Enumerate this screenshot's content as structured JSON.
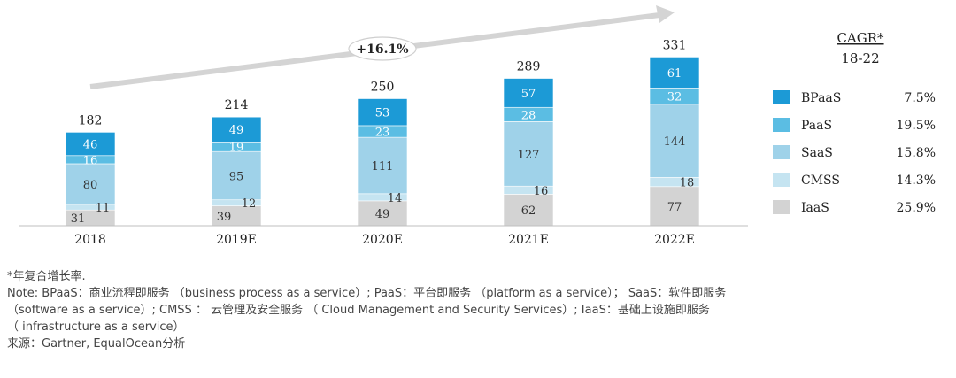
{
  "chart_data": {
    "type": "bar",
    "stacked": true,
    "categories": [
      "2018",
      "2019E",
      "2020E",
      "2021E",
      "2022E"
    ],
    "series": [
      {
        "name": "IaaS",
        "values": [
          31,
          39,
          49,
          62,
          77
        ]
      },
      {
        "name": "CMSS",
        "values": [
          11,
          12,
          14,
          16,
          18
        ]
      },
      {
        "name": "SaaS",
        "values": [
          80,
          95,
          111,
          127,
          144
        ]
      },
      {
        "name": "PaaS",
        "values": [
          16,
          19,
          23,
          28,
          32
        ]
      },
      {
        "name": "BPaaS",
        "values": [
          46,
          49,
          53,
          57,
          61
        ]
      }
    ],
    "totals": [
      182,
      214,
      250,
      289,
      331
    ],
    "growth_label": "+16.1%",
    "cagr_title": "CAGR*",
    "cagr_period": "18-22",
    "legend": [
      {
        "name": "BPaaS",
        "cagr": "7.5%"
      },
      {
        "name": "PaaS",
        "cagr": "19.5%"
      },
      {
        "name": "SaaS",
        "cagr": "15.8%"
      },
      {
        "name": "CMSS",
        "cagr": "14.3%"
      },
      {
        "name": "IaaS",
        "cagr": "25.9%"
      }
    ],
    "legend_position": "right",
    "ylim": [
      0,
      331
    ],
    "colors": {
      "IaaS": "#d3d3d3",
      "CMSS": "#c5e4f1",
      "SaaS": "#9fd2e9",
      "PaaS": "#5bbde3",
      "BPaaS": "#1c9ad6",
      "arrow": "#d4d4d4"
    }
  },
  "notes": {
    "line1": "*年复合增长率.",
    "line2": "Note: BPaaS：商业流程即服务 （business process as a service）; PaaS：平台即服务 （platform as a service）； SaaS：软件即服务",
    "line3": "（software as a service）; CMSS ： 云管理及安全服务 （ Cloud Management and Security Services）; IaaS：基础上设施即服务",
    "line4": "（ infrastructure as a service）",
    "source": "来源：Gartner, EqualOcean分析"
  }
}
